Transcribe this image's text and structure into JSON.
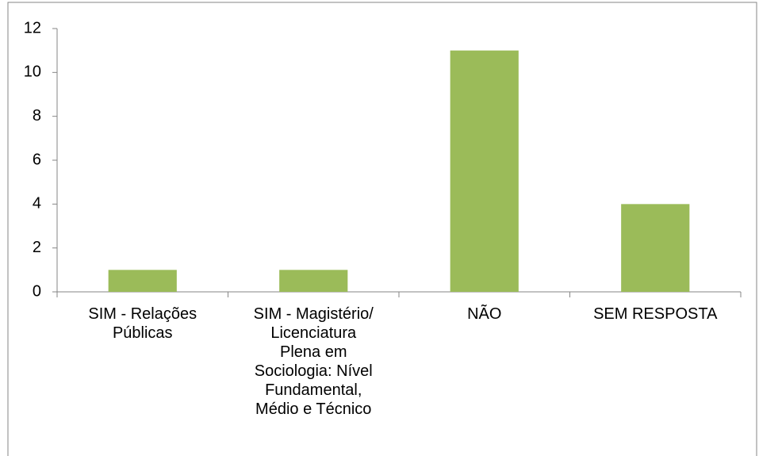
{
  "chart_data": {
    "type": "bar",
    "categories": [
      "SIM -  Relações\nPúblicas",
      "SIM -  Magistério/\nLicenciatura\nPlena em\nSociologia: Nível\nFundamental,\nMédio e Técnico",
      "NÃO",
      "SEM RESPOSTA"
    ],
    "values": [
      1,
      1,
      11,
      4
    ],
    "color": "#9bbb59",
    "ylim": [
      0,
      12
    ],
    "yticks": [
      0,
      2,
      4,
      6,
      8,
      10,
      12
    ],
    "grid": false
  }
}
